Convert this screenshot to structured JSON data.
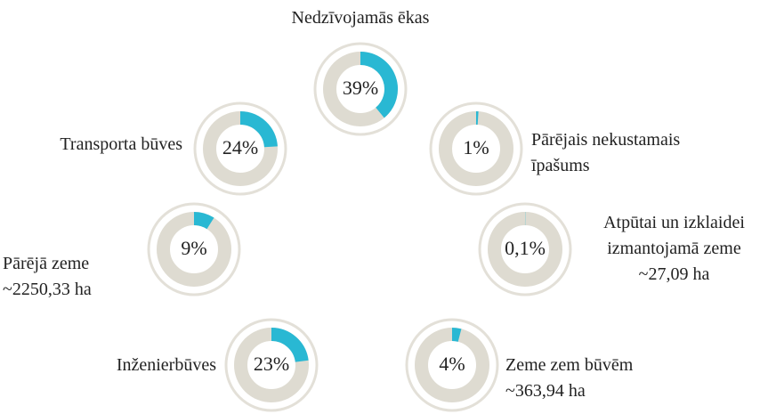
{
  "chart_data": [
    {
      "type": "donut",
      "title": "Nedzīvojamās ēkas",
      "values": [
        39
      ],
      "value_labels": [
        "39%"
      ],
      "color": "#29b8d3"
    },
    {
      "type": "donut",
      "title": "Transporta būves",
      "values": [
        24
      ],
      "value_labels": [
        "24%"
      ],
      "color": "#29b8d3"
    },
    {
      "type": "donut",
      "title": "Pārējais nekustamais īpašums",
      "values": [
        1
      ],
      "value_labels": [
        "1%"
      ],
      "color": "#29b8d3"
    },
    {
      "type": "donut",
      "title": "Pārējā zeme",
      "subtitle": "~2250,33 ha",
      "values": [
        9
      ],
      "value_labels": [
        "9%"
      ],
      "color": "#29b8d3"
    },
    {
      "type": "donut",
      "title": "Atpūtai un izklaidei izmantojamā zeme",
      "subtitle": "~27,09 ha",
      "values": [
        0.1
      ],
      "value_labels": [
        "0,1%"
      ],
      "color": "#29b8d3"
    },
    {
      "type": "donut",
      "title": "Inženierbūves",
      "values": [
        23
      ],
      "value_labels": [
        "23%"
      ],
      "color": "#29b8d3"
    },
    {
      "type": "donut",
      "title": "Zeme zem būvēm",
      "subtitle": "~363,94 ha",
      "values": [
        4
      ],
      "value_labels": [
        "4%"
      ],
      "color": "#29b8d3"
    }
  ]
}
